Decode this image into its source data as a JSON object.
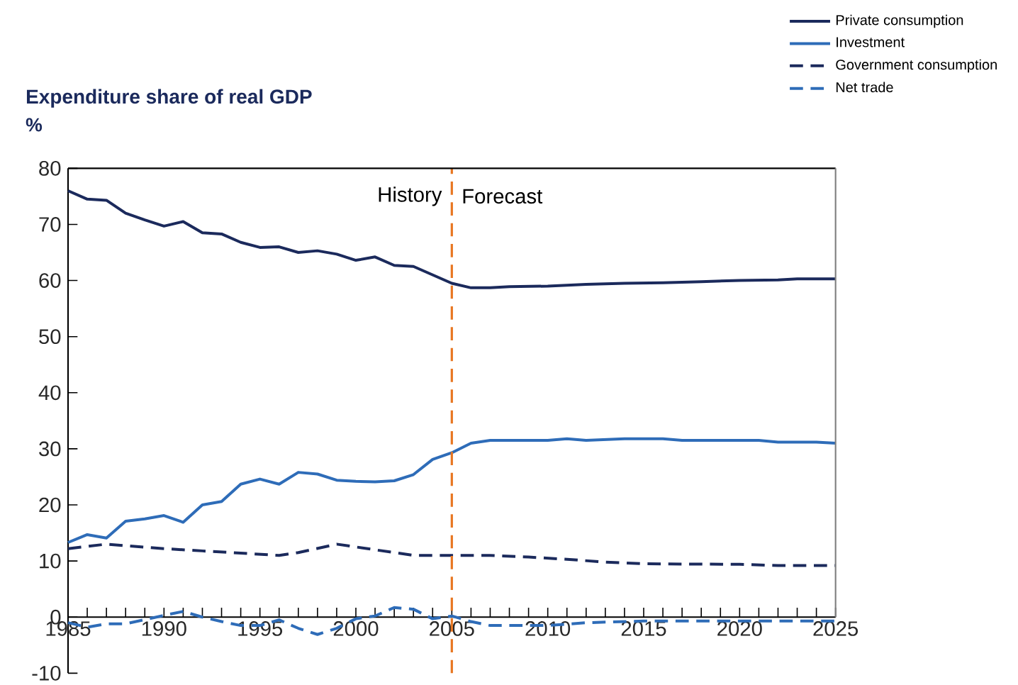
{
  "chart_data": {
    "type": "line",
    "title": "Expenditure share of real GDP",
    "ylabel": "%",
    "xlim": [
      1985,
      2025
    ],
    "xticks": [
      1985,
      1990,
      1995,
      2000,
      2005,
      2010,
      2015,
      2020,
      2025
    ],
    "ylim": [
      -10,
      80
    ],
    "yticks": [
      -10,
      0,
      10,
      20,
      30,
      40,
      50,
      60,
      70,
      80
    ],
    "grid": false,
    "legend": "top right",
    "marker": "none",
    "ref_lines": [
      {
        "axis": "x",
        "value": 2005,
        "color": "#e87722",
        "line_style": "dashed"
      }
    ],
    "annotations": [
      {
        "text": "History",
        "x": 2005,
        "y": 75
      },
      {
        "text": "Forecast",
        "x": 2005,
        "y": 75
      }
    ],
    "series": [
      {
        "name": "Private consumption",
        "color": "#1b2a5c",
        "line_style": "solid",
        "x": [
          1985,
          1986,
          1987,
          1988,
          1989,
          1990,
          1991,
          1992,
          1993,
          1994,
          1995,
          1996,
          1997,
          1998,
          1999,
          2000,
          2001,
          2002,
          2003,
          2004,
          2005,
          2006,
          2007,
          2008,
          2010,
          2012,
          2014,
          2016,
          2018,
          2020,
          2022,
          2023,
          2025
        ],
        "values": [
          76,
          74.5,
          74.3,
          72,
          70.8,
          69.7,
          70.5,
          68.5,
          68.3,
          66.8,
          65.9,
          66,
          65,
          65.3,
          64.7,
          63.6,
          64.2,
          62.7,
          62.5,
          61,
          59.5,
          58.7,
          58.7,
          58.9,
          59,
          59.3,
          59.5,
          59.6,
          59.8,
          60,
          60.1,
          60.3,
          60.3
        ]
      },
      {
        "name": "Investment",
        "color": "#2e6cb8",
        "line_style": "solid",
        "x": [
          1985,
          1986,
          1987,
          1988,
          1989,
          1990,
          1991,
          1992,
          1993,
          1994,
          1995,
          1996,
          1997,
          1998,
          1999,
          2000,
          2001,
          2002,
          2003,
          2004,
          2005,
          2006,
          2007,
          2010,
          2011,
          2012,
          2014,
          2016,
          2017,
          2021,
          2022,
          2024,
          2025
        ],
        "values": [
          13.3,
          14.7,
          14.1,
          17.1,
          17.5,
          18.1,
          16.9,
          20,
          20.6,
          23.7,
          24.6,
          23.7,
          25.8,
          25.5,
          24.4,
          24.2,
          24.1,
          24.3,
          25.4,
          28.1,
          29.3,
          31,
          31.5,
          31.5,
          31.8,
          31.5,
          31.8,
          31.8,
          31.5,
          31.5,
          31.2,
          31.2,
          31
        ]
      },
      {
        "name": "Government consumption",
        "color": "#1b2a5c",
        "line_style": "dashed",
        "x": [
          1985,
          1987,
          1990,
          1992,
          1994,
          1996,
          1997,
          1999,
          2001,
          2003,
          2005,
          2007,
          2009,
          2011,
          2013,
          2015,
          2020,
          2022,
          2025
        ],
        "values": [
          12.2,
          13,
          12.2,
          11.8,
          11.4,
          11,
          11.5,
          13,
          12,
          11,
          11,
          11,
          10.7,
          10.3,
          9.8,
          9.5,
          9.4,
          9.2,
          9.2
        ]
      },
      {
        "name": "Net trade",
        "color": "#2e6cb8",
        "line_style": "dashed",
        "x": [
          1985,
          1986,
          1987,
          1988,
          1990,
          1991,
          1992,
          1993,
          1994,
          1995,
          1996,
          1997,
          1998,
          1999,
          2000,
          2001,
          2002,
          2003,
          2004,
          2005,
          2006,
          2007,
          2010,
          2012,
          2015,
          2025
        ],
        "values": [
          -1,
          -1.8,
          -1.2,
          -1.2,
          0.3,
          1,
          0,
          -0.8,
          -1.5,
          -1.5,
          -0.5,
          -2,
          -3.1,
          -2,
          -0.3,
          0.2,
          1.7,
          1.4,
          -0.3,
          0.2,
          -0.8,
          -1.5,
          -1.5,
          -1,
          -0.7,
          -0.7
        ]
      }
    ]
  }
}
